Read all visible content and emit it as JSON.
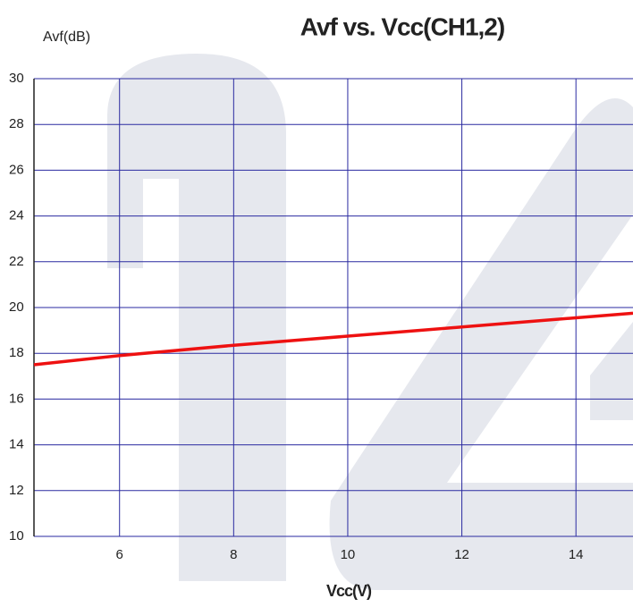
{
  "chart_data": {
    "type": "line",
    "title": "Avf vs. Vcc(CH1,2)",
    "y_label": "Avf(dB)",
    "x_label": "Vcc(V)",
    "x": [
      4.5,
      6,
      8,
      10,
      12,
      14,
      15
    ],
    "values": [
      17.5,
      17.9,
      18.35,
      18.75,
      19.15,
      19.55,
      19.75
    ],
    "color": "#ee1111",
    "xlim": [
      4.5,
      15
    ],
    "xticks": [
      6,
      8,
      10,
      12,
      14
    ],
    "ylim": [
      10,
      30
    ],
    "yticks": [
      10,
      12,
      14,
      16,
      18,
      20,
      22,
      24,
      26,
      28,
      30
    ],
    "grid": true
  }
}
